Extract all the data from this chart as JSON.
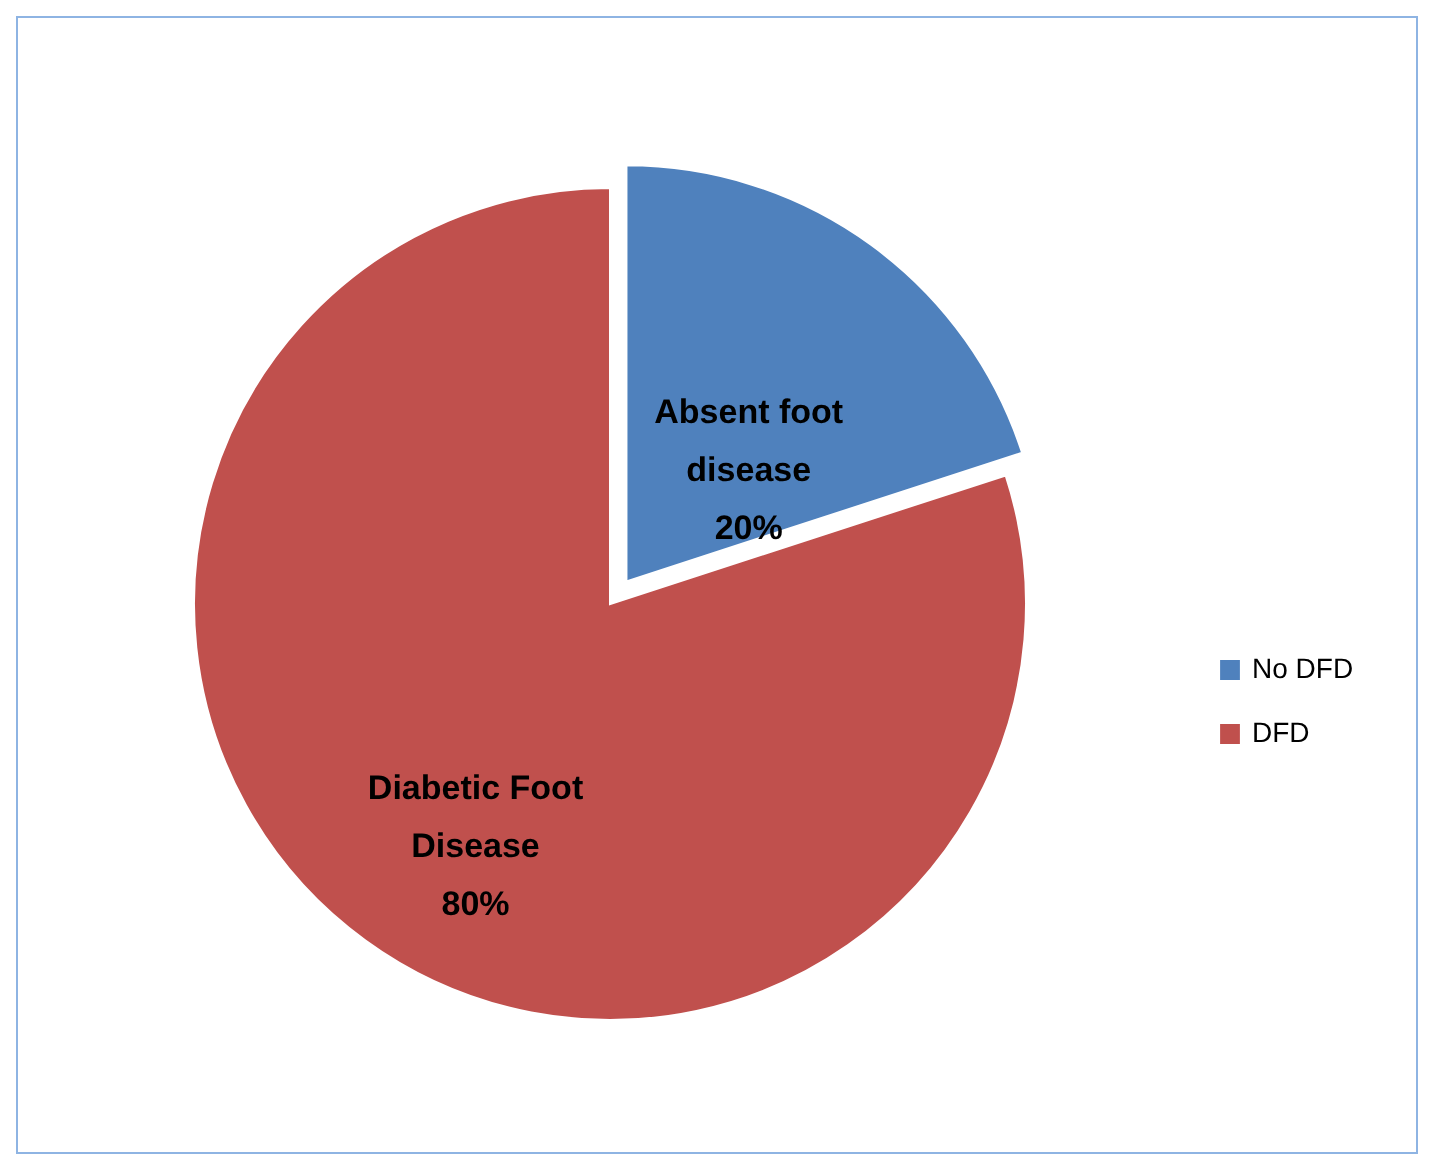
{
  "chart_data": {
    "type": "pie",
    "categories": [
      "No DFD",
      "DFD"
    ],
    "values": [
      20,
      80
    ],
    "colors": [
      "#4f81bd",
      "#c0504d"
    ],
    "value_labels": [
      "Absent foot\ndisease\n20%",
      "Diabetic Foot\nDisease\n80%"
    ],
    "legend": "right"
  }
}
